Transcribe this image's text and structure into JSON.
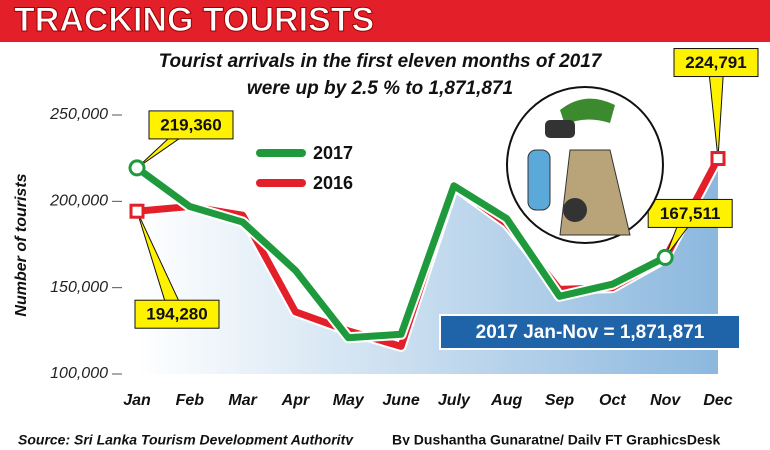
{
  "chart_data": {
    "type": "line",
    "title": "TRACKING TOURISTS",
    "subtitle": [
      "Tourist arrivals in the first eleven months of 2017",
      "were up by 2.5 % to 1,871,871"
    ],
    "y_label": "Number of tourists",
    "categories": [
      "Jan",
      "Feb",
      "Mar",
      "Apr",
      "May",
      "June",
      "July",
      "Aug",
      "Sep",
      "Oct",
      "Nov",
      "Dec"
    ],
    "series": [
      {
        "name": "2016",
        "color": "#e3202a",
        "values": [
          194280,
          197000,
          192000,
          136000,
          125000,
          116000,
          209000,
          187000,
          149000,
          150000,
          167000,
          224791
        ],
        "value_labels": [
          "194,280",
          null,
          null,
          null,
          null,
          null,
          null,
          null,
          null,
          null,
          null,
          "224,791"
        ]
      },
      {
        "name": "2017",
        "color": "#1e9a3c",
        "values": [
          219360,
          197000,
          188000,
          160000,
          121000,
          123000,
          209000,
          190000,
          145000,
          152000,
          167511,
          null
        ],
        "value_labels": [
          "219,360",
          null,
          null,
          null,
          null,
          null,
          null,
          null,
          null,
          null,
          "167,511",
          null
        ]
      }
    ],
    "ylim": [
      100000,
      250000
    ],
    "yticks": [
      {
        "value": 100000,
        "label": "100,000"
      },
      {
        "value": 150000,
        "label": "150,000"
      },
      {
        "value": 200000,
        "label": "200,000"
      },
      {
        "value": 250000,
        "label": "250,000"
      }
    ],
    "annotation": "2017  Jan-Nov =  1,871,871",
    "source": "Source: Sri Lanka Tourism Development Authority",
    "credit": "By Dushantha Gunaratne/ Daily FT GraphicsDesk"
  }
}
